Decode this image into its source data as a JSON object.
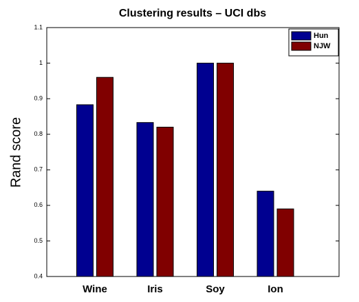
{
  "chart_data": {
    "type": "bar",
    "title": "Clustering results  –  UCI dbs",
    "ylabel": "Rand score",
    "categories": [
      "Wine",
      "Iris",
      "Soy",
      "Ion"
    ],
    "series": [
      {
        "name": "Hun",
        "color": "#000090",
        "values": [
          0.883,
          0.833,
          1,
          0.64
        ]
      },
      {
        "name": "NJW",
        "color": "#800000",
        "values": [
          0.96,
          0.82,
          1,
          0.59
        ]
      }
    ],
    "ylim": [
      0.4,
      1.1
    ],
    "yticks": [
      0.4,
      0.5,
      0.6,
      0.7,
      0.8,
      0.9,
      1,
      1.1
    ],
    "legend": "upper right"
  }
}
